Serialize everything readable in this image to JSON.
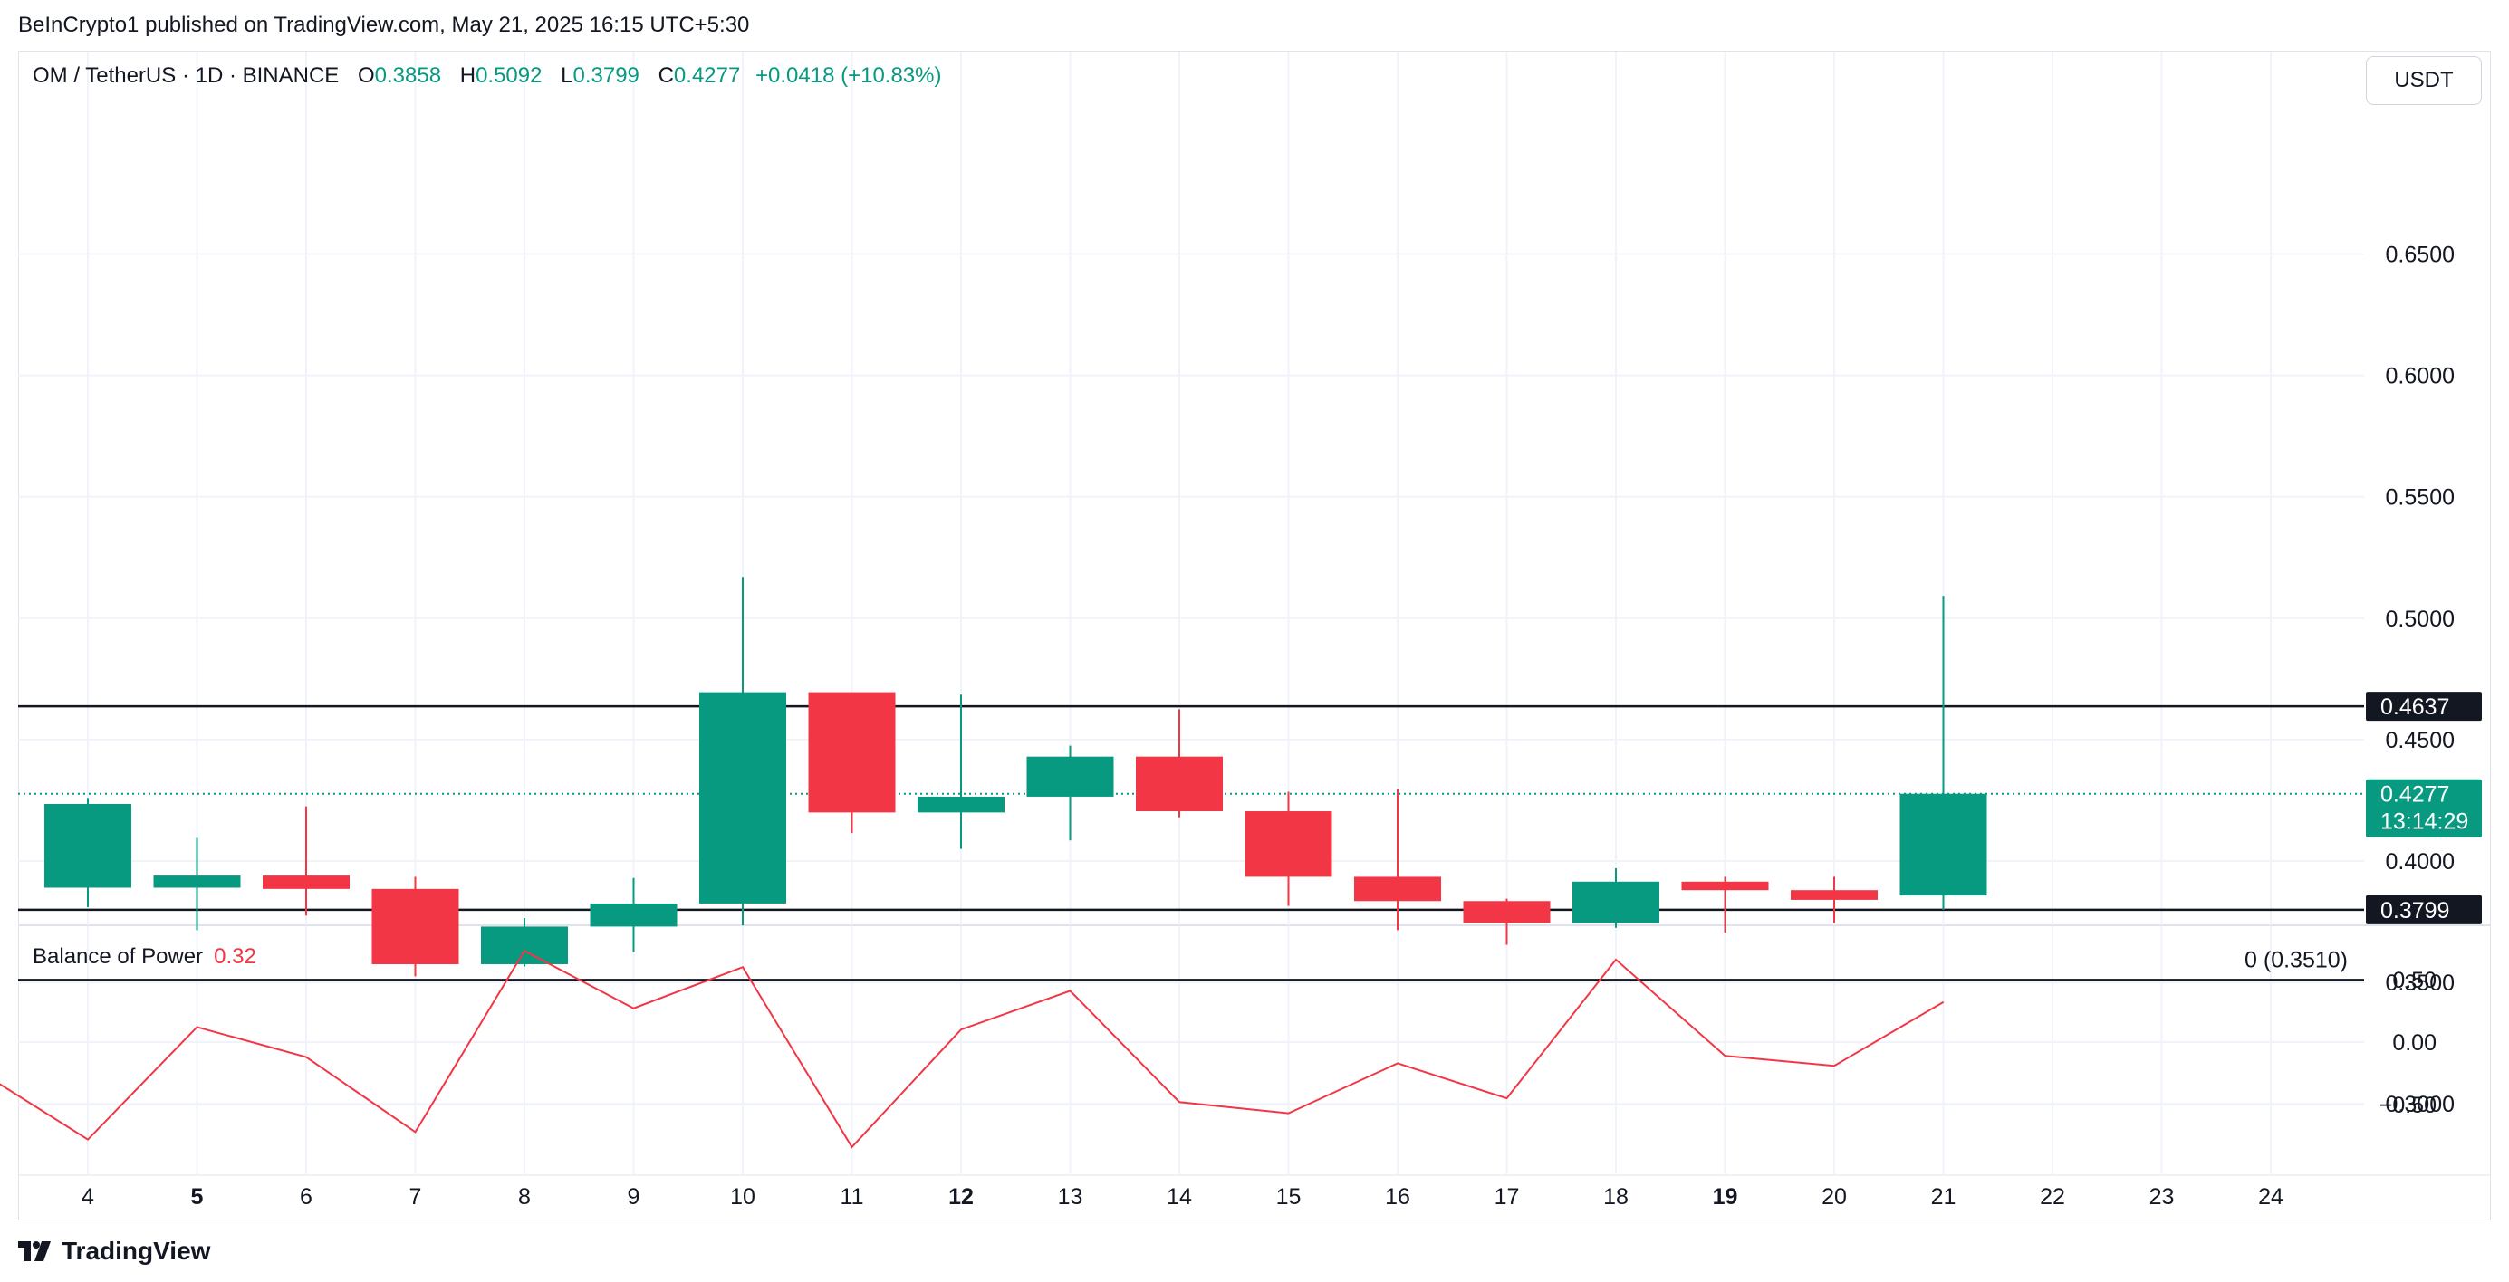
{
  "header": {
    "publisher": "BeInCrypto1 published on TradingView.com, May 21, 2025 16:15 UTC+5:30"
  },
  "legend": {
    "symbol": "OM / TetherUS · 1D · BINANCE",
    "o_label": "O",
    "o_value": "0.3858",
    "h_label": "H",
    "h_value": "0.5092",
    "l_label": "L",
    "l_value": "0.3799",
    "c_label": "C",
    "c_value": "0.4277",
    "change": "+0.0418 (+10.83%)"
  },
  "currency": "USDT",
  "price_badges": {
    "resistance": "0.4637",
    "current_price": "0.4277",
    "countdown": "13:14:29",
    "support": "0.3799"
  },
  "fib_label": "0 (0.3510)",
  "indicator": {
    "name": "Balance of Power",
    "value": "0.32"
  },
  "footer": {
    "logo_text": "TradingView"
  },
  "colors": {
    "up": "#089981",
    "down": "#f23645",
    "line": "#f23645",
    "grid": "#f0f3fa",
    "text": "#131722",
    "axis_text": "#131722"
  },
  "chart_data": [
    {
      "type": "candlestick",
      "x_labels": [
        "4",
        "5",
        "6",
        "7",
        "8",
        "9",
        "10",
        "11",
        "12",
        "13",
        "14",
        "15",
        "16",
        "17",
        "18",
        "19",
        "20",
        "21",
        "22",
        "23",
        "24"
      ],
      "x_bold": [
        "5",
        "12",
        "19"
      ],
      "yticks": [
        "0.6500",
        "0.6000",
        "0.5500",
        "0.5000",
        "0.4500",
        "0.4000",
        "0.3500",
        "0.3000"
      ],
      "ylim": [
        0.265,
        0.695
      ],
      "horizontal_lines": [
        0.4637,
        0.3799,
        0.351
      ],
      "current_price": 0.4277,
      "candles": [
        {
          "x": "4",
          "o": 0.389,
          "h": 0.426,
          "l": 0.381,
          "c": 0.4235
        },
        {
          "x": "5",
          "o": 0.389,
          "h": 0.4095,
          "l": 0.3715,
          "c": 0.394
        },
        {
          "x": "6",
          "o": 0.394,
          "h": 0.4225,
          "l": 0.3775,
          "c": 0.3885
        },
        {
          "x": "7",
          "o": 0.3885,
          "h": 0.3935,
          "l": 0.3525,
          "c": 0.3575
        },
        {
          "x": "8",
          "o": 0.3575,
          "h": 0.3765,
          "l": 0.3565,
          "c": 0.373
        },
        {
          "x": "9",
          "o": 0.373,
          "h": 0.393,
          "l": 0.3625,
          "c": 0.3825
        },
        {
          "x": "10",
          "o": 0.3825,
          "h": 0.517,
          "l": 0.3735,
          "c": 0.4695
        },
        {
          "x": "11",
          "o": 0.4695,
          "h": 0.469,
          "l": 0.4115,
          "c": 0.42
        },
        {
          "x": "12",
          "o": 0.42,
          "h": 0.4685,
          "l": 0.405,
          "c": 0.4265
        },
        {
          "x": "13",
          "o": 0.4265,
          "h": 0.4475,
          "l": 0.4085,
          "c": 0.443
        },
        {
          "x": "14",
          "o": 0.443,
          "h": 0.4625,
          "l": 0.418,
          "c": 0.4205
        },
        {
          "x": "15",
          "o": 0.4205,
          "h": 0.4285,
          "l": 0.3815,
          "c": 0.3935
        },
        {
          "x": "16",
          "o": 0.3935,
          "h": 0.4295,
          "l": 0.3715,
          "c": 0.3835
        },
        {
          "x": "17",
          "o": 0.3835,
          "h": 0.3845,
          "l": 0.3655,
          "c": 0.3745
        },
        {
          "x": "18",
          "o": 0.3745,
          "h": 0.397,
          "l": 0.3725,
          "c": 0.3915
        },
        {
          "x": "19",
          "o": 0.3915,
          "h": 0.3935,
          "l": 0.3705,
          "c": 0.388
        },
        {
          "x": "20",
          "o": 0.388,
          "h": 0.3935,
          "l": 0.3745,
          "c": 0.384
        },
        {
          "x": "21",
          "o": 0.3858,
          "h": 0.5092,
          "l": 0.3799,
          "c": 0.4277
        }
      ]
    },
    {
      "type": "line",
      "name": "Balance of Power",
      "yticks": [
        "0.50",
        "0.00",
        "−0.50"
      ],
      "ylim": [
        -0.95,
        0.85
      ],
      "x": [
        "3",
        "4",
        "5",
        "6",
        "7",
        "8",
        "9",
        "10",
        "11",
        "12",
        "13",
        "14",
        "15",
        "16",
        "17",
        "18",
        "19",
        "20",
        "21"
      ],
      "values": [
        -0.23,
        -0.78,
        0.12,
        -0.12,
        -0.72,
        0.73,
        0.27,
        0.6,
        -0.84,
        0.1,
        0.41,
        -0.48,
        -0.57,
        -0.17,
        -0.45,
        0.66,
        -0.11,
        -0.19,
        0.32
      ]
    }
  ]
}
